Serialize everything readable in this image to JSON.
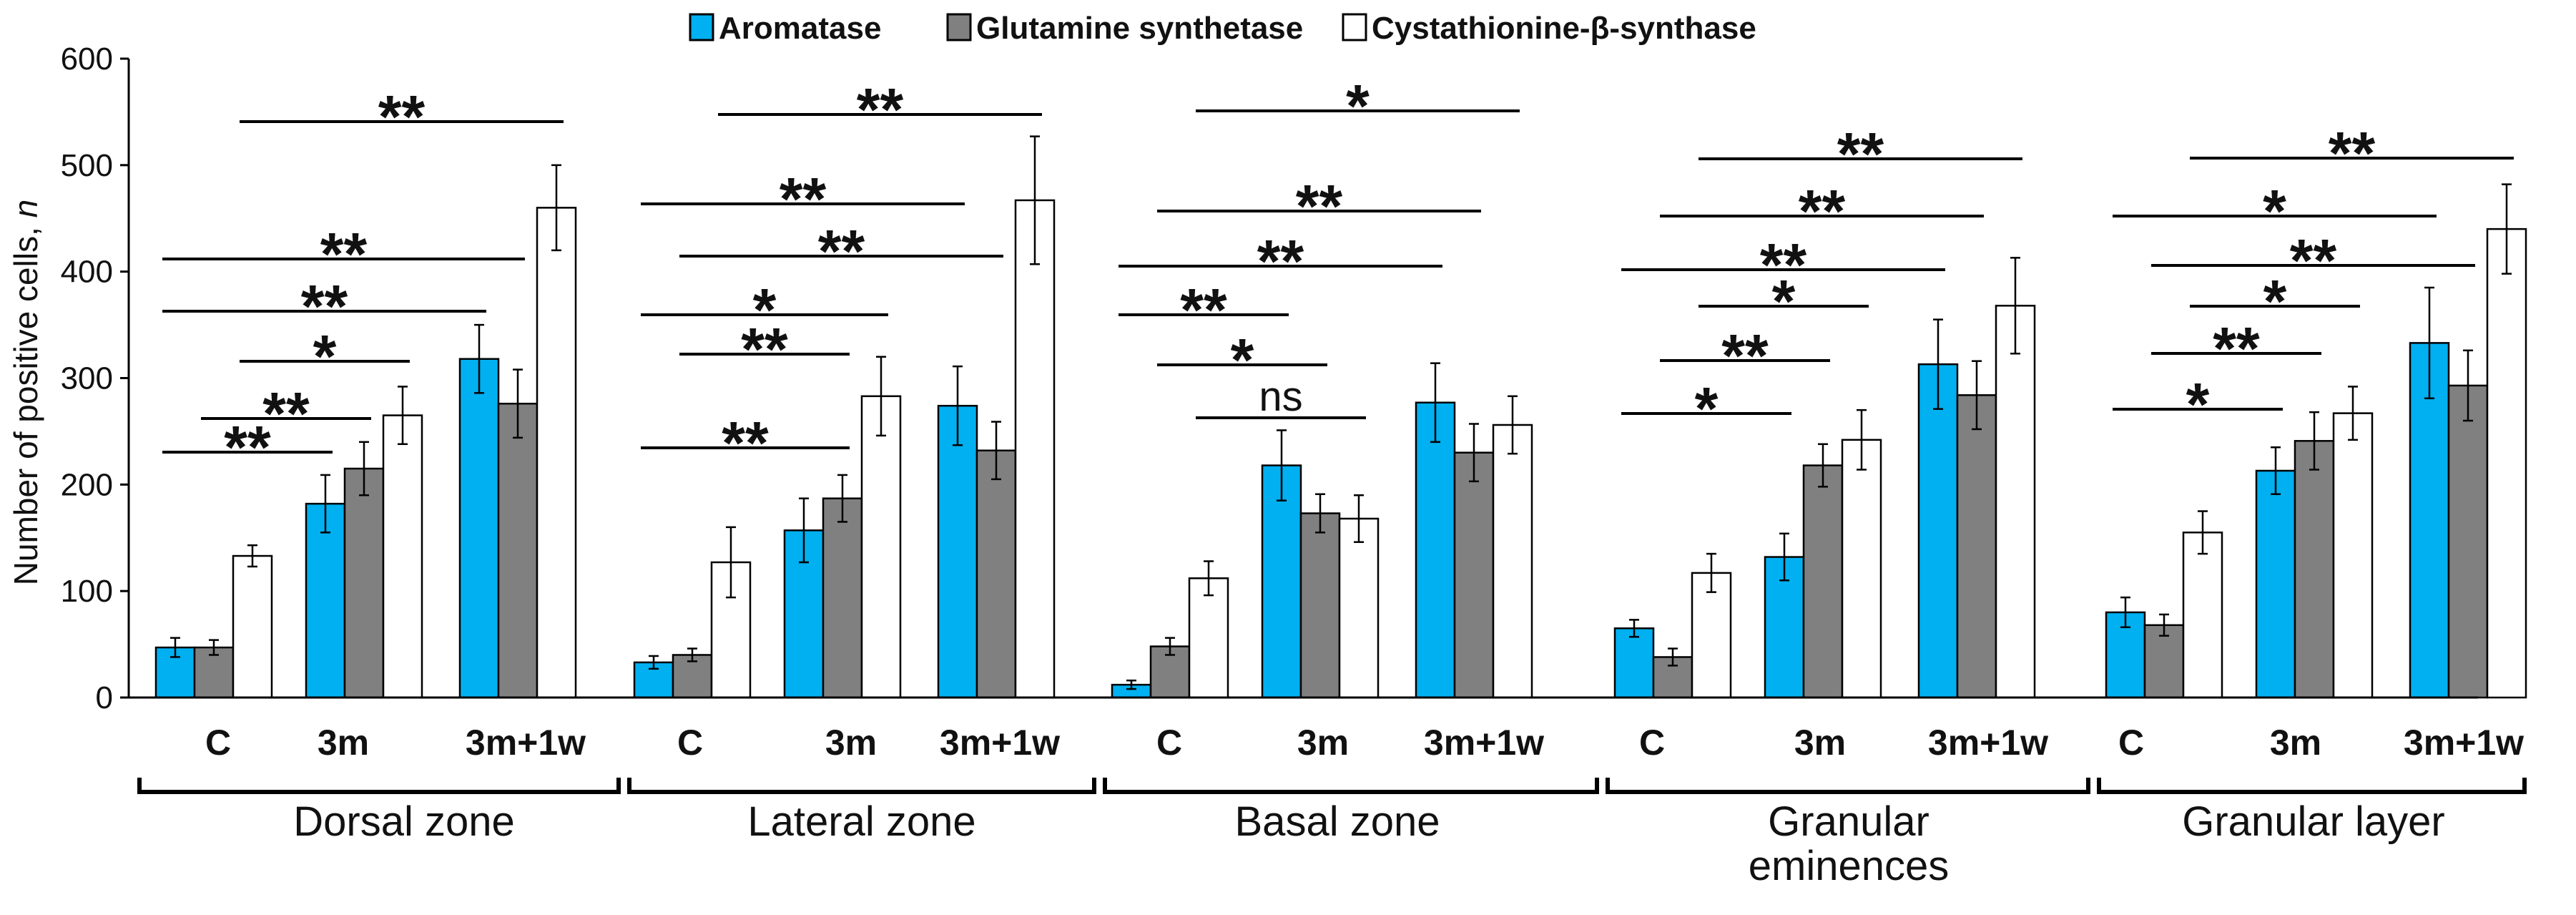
{
  "chart_data": {
    "type": "bar",
    "title": "",
    "xlabel": "",
    "ylabel": "Number of positive cells, ",
    "ylabel_italic": "n",
    "ylim": [
      0,
      600
    ],
    "yticks": [
      0,
      100,
      200,
      300,
      400,
      500,
      600
    ],
    "colors": {
      "Aromatase": "#00b0f0",
      "Glutamine synthetase": "#808080",
      "Cystathionine-β-synthase": "#ffffff"
    },
    "legend": [
      "Aromatase",
      "Glutamine synthetase",
      "Cystathionine-β-synthase"
    ],
    "group_labels": [
      "C",
      "3m",
      "3m+1w"
    ],
    "zones": [
      {
        "name": "Dorsal zone",
        "groups": [
          {
            "label": "C",
            "values": [
              47,
              47,
              133
            ],
            "errors": [
              9,
              7,
              10
            ]
          },
          {
            "label": "3m",
            "values": [
              182,
              215,
              265
            ],
            "errors": [
              27,
              25,
              27
            ]
          },
          {
            "label": "3m+1w",
            "values": [
              318,
              276,
              460
            ],
            "errors": [
              32,
              32,
              40
            ]
          }
        ],
        "significance": [
          {
            "label": "**",
            "from": [
              0,
              0
            ],
            "to": [
              1,
              0
            ]
          },
          {
            "label": "**",
            "from": [
              0,
              1
            ],
            "to": [
              1,
              1
            ]
          },
          {
            "label": "*",
            "from": [
              0,
              2
            ],
            "to": [
              1,
              2
            ]
          },
          {
            "label": "**",
            "from": [
              0,
              0
            ],
            "to": [
              2,
              1
            ]
          },
          {
            "label": "**",
            "from": [
              0,
              0
            ],
            "to": [
              2,
              0
            ]
          },
          {
            "label": "**",
            "from": [
              0,
              2
            ],
            "to": [
              2,
              2
            ]
          }
        ]
      },
      {
        "name": "Lateral zone",
        "groups": [
          {
            "label": "C",
            "values": [
              33,
              40,
              127
            ],
            "errors": [
              6,
              6,
              33
            ]
          },
          {
            "label": "3m",
            "values": [
              157,
              187,
              283
            ],
            "errors": [
              30,
              22,
              37
            ]
          },
          {
            "label": "3m+1w",
            "values": [
              274,
              232,
              467
            ],
            "errors": [
              37,
              27,
              60
            ]
          }
        ],
        "significance": [
          {
            "label": "**",
            "from": [
              0,
              0
            ],
            "to": [
              1,
              1
            ]
          },
          {
            "label": "**",
            "from": [
              0,
              1
            ],
            "to": [
              1,
              1
            ]
          },
          {
            "label": "*",
            "from": [
              0,
              0
            ],
            "to": [
              1,
              2
            ]
          },
          {
            "label": "**",
            "from": [
              0,
              1
            ],
            "to": [
              2,
              1
            ]
          },
          {
            "label": "**",
            "from": [
              0,
              0
            ],
            "to": [
              2,
              0
            ]
          },
          {
            "label": "**",
            "from": [
              0,
              2
            ],
            "to": [
              2,
              2
            ]
          }
        ]
      },
      {
        "name": "Basal zone",
        "groups": [
          {
            "label": "C",
            "values": [
              12,
              48,
              112
            ],
            "errors": [
              4,
              8,
              16
            ]
          },
          {
            "label": "3m",
            "values": [
              218,
              173,
              168
            ],
            "errors": [
              33,
              18,
              22
            ]
          },
          {
            "label": "3m+1w",
            "values": [
              277,
              230,
              256
            ],
            "errors": [
              37,
              27,
              27
            ]
          }
        ],
        "significance": [
          {
            "label": "ns",
            "from": [
              0,
              2
            ],
            "to": [
              1,
              2
            ]
          },
          {
            "label": "*",
            "from": [
              0,
              1
            ],
            "to": [
              1,
              1
            ]
          },
          {
            "label": "**",
            "from": [
              0,
              0
            ],
            "to": [
              1,
              0
            ]
          },
          {
            "label": "**",
            "from": [
              0,
              0
            ],
            "to": [
              2,
              0
            ]
          },
          {
            "label": "**",
            "from": [
              0,
              1
            ],
            "to": [
              2,
              1
            ]
          },
          {
            "label": "*",
            "from": [
              0,
              2
            ],
            "to": [
              2,
              2
            ]
          }
        ]
      },
      {
        "name": "Granular\neminences",
        "groups": [
          {
            "label": "C",
            "values": [
              65,
              38,
              117
            ],
            "errors": [
              8,
              8,
              18
            ]
          },
          {
            "label": "3m",
            "values": [
              132,
              218,
              242
            ],
            "errors": [
              22,
              20,
              28
            ]
          },
          {
            "label": "3m+1w",
            "values": [
              313,
              284,
              368
            ],
            "errors": [
              42,
              32,
              45
            ]
          }
        ],
        "significance": [
          {
            "label": "*",
            "from": [
              0,
              0
            ],
            "to": [
              1,
              0
            ]
          },
          {
            "label": "**",
            "from": [
              0,
              1
            ],
            "to": [
              1,
              1
            ]
          },
          {
            "label": "*",
            "from": [
              0,
              2
            ],
            "to": [
              1,
              2
            ]
          },
          {
            "label": "**",
            "from": [
              0,
              0
            ],
            "to": [
              2,
              0
            ]
          },
          {
            "label": "**",
            "from": [
              0,
              1
            ],
            "to": [
              2,
              1
            ]
          },
          {
            "label": "**",
            "from": [
              0,
              2
            ],
            "to": [
              2,
              2
            ]
          }
        ]
      },
      {
        "name": "Granular layer",
        "groups": [
          {
            "label": "C",
            "values": [
              80,
              68,
              155
            ],
            "errors": [
              14,
              10,
              20
            ]
          },
          {
            "label": "3m",
            "values": [
              213,
              241,
              267
            ],
            "errors": [
              22,
              27,
              25
            ]
          },
          {
            "label": "3m+1w",
            "values": [
              333,
              293,
              440
            ],
            "errors": [
              52,
              33,
              42
            ]
          }
        ],
        "significance": [
          {
            "label": "*",
            "from": [
              0,
              0
            ],
            "to": [
              1,
              0
            ]
          },
          {
            "label": "**",
            "from": [
              0,
              1
            ],
            "to": [
              1,
              1
            ]
          },
          {
            "label": "*",
            "from": [
              0,
              2
            ],
            "to": [
              1,
              2
            ]
          },
          {
            "label": "**",
            "from": [
              0,
              1
            ],
            "to": [
              2,
              1
            ]
          },
          {
            "label": "*",
            "from": [
              0,
              0
            ],
            "to": [
              2,
              0
            ]
          },
          {
            "label": "**",
            "from": [
              0,
              2
            ],
            "to": [
              2,
              2
            ]
          }
        ]
      }
    ]
  }
}
